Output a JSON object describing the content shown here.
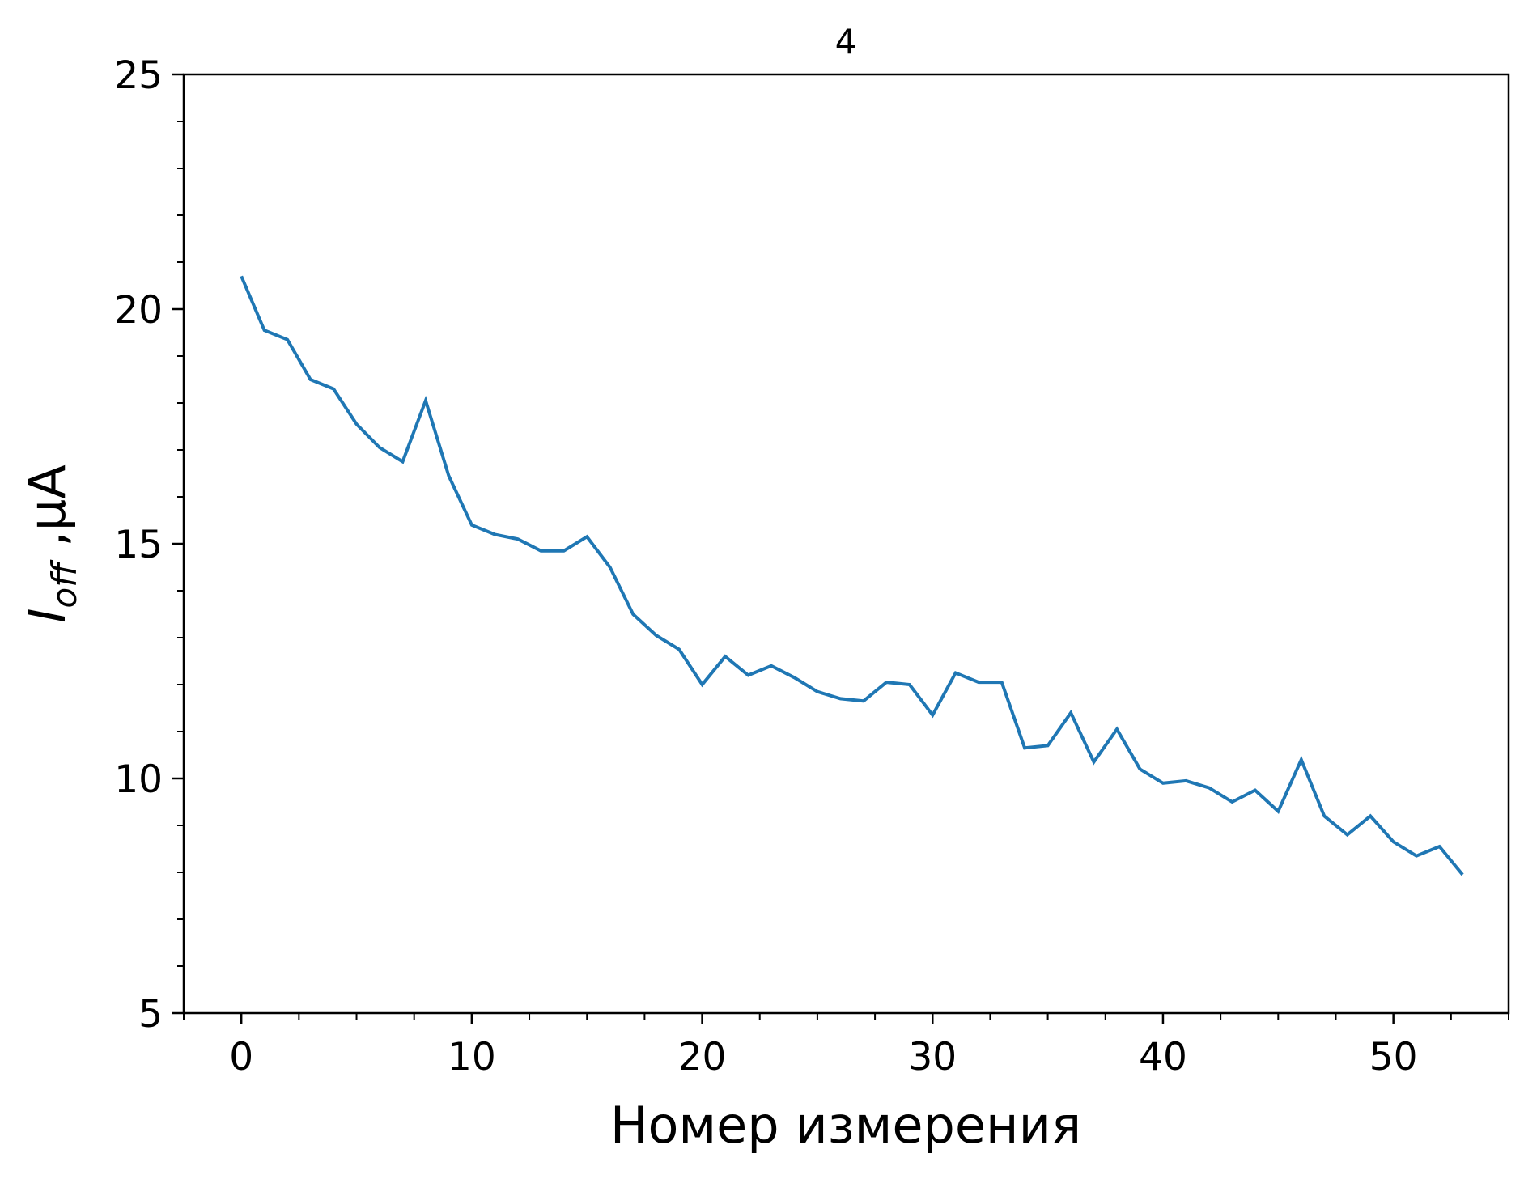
{
  "chart_data": {
    "type": "line",
    "title": "4",
    "xlabel": "Номер измерения",
    "ylabel": {
      "main": "I",
      "sub": "off",
      "unit": " ,μA"
    },
    "xlim": [
      -2.5,
      55
    ],
    "ylim": [
      5,
      25
    ],
    "xticks_major": [
      0,
      10,
      20,
      30,
      40,
      50
    ],
    "xtick_labels": [
      "0",
      "10",
      "20",
      "30",
      "40",
      "50"
    ],
    "yticks_major": [
      5,
      10,
      15,
      20,
      25
    ],
    "ytick_labels": [
      "5",
      "10",
      "15",
      "20",
      "25"
    ],
    "grid": false,
    "legend": "none",
    "series": [
      {
        "color": "#1f77b4",
        "x": [
          0,
          1,
          2,
          3,
          4,
          5,
          6,
          7,
          8,
          9,
          10,
          11,
          12,
          13,
          14,
          15,
          16,
          17,
          18,
          19,
          20,
          21,
          22,
          23,
          24,
          25,
          26,
          27,
          28,
          29,
          30,
          31,
          32,
          33,
          34,
          35,
          36,
          37,
          38,
          39,
          40,
          41,
          42,
          43,
          44,
          45,
          46,
          47,
          48,
          49,
          50,
          51,
          52,
          53
        ],
        "values": [
          20.7,
          19.55,
          19.35,
          18.5,
          18.3,
          17.55,
          17.05,
          16.75,
          18.05,
          16.45,
          15.4,
          15.2,
          15.1,
          14.85,
          14.85,
          15.15,
          14.5,
          13.5,
          13.05,
          12.75,
          12.0,
          12.6,
          12.2,
          12.4,
          12.15,
          11.85,
          11.7,
          11.65,
          12.05,
          12.0,
          11.35,
          12.25,
          12.05,
          12.05,
          10.65,
          10.7,
          11.4,
          10.35,
          11.05,
          10.2,
          9.9,
          9.95,
          9.8,
          9.5,
          9.75,
          9.3,
          10.4,
          9.2,
          8.8,
          9.2,
          8.65,
          8.35,
          8.55,
          7.95
        ]
      }
    ]
  }
}
